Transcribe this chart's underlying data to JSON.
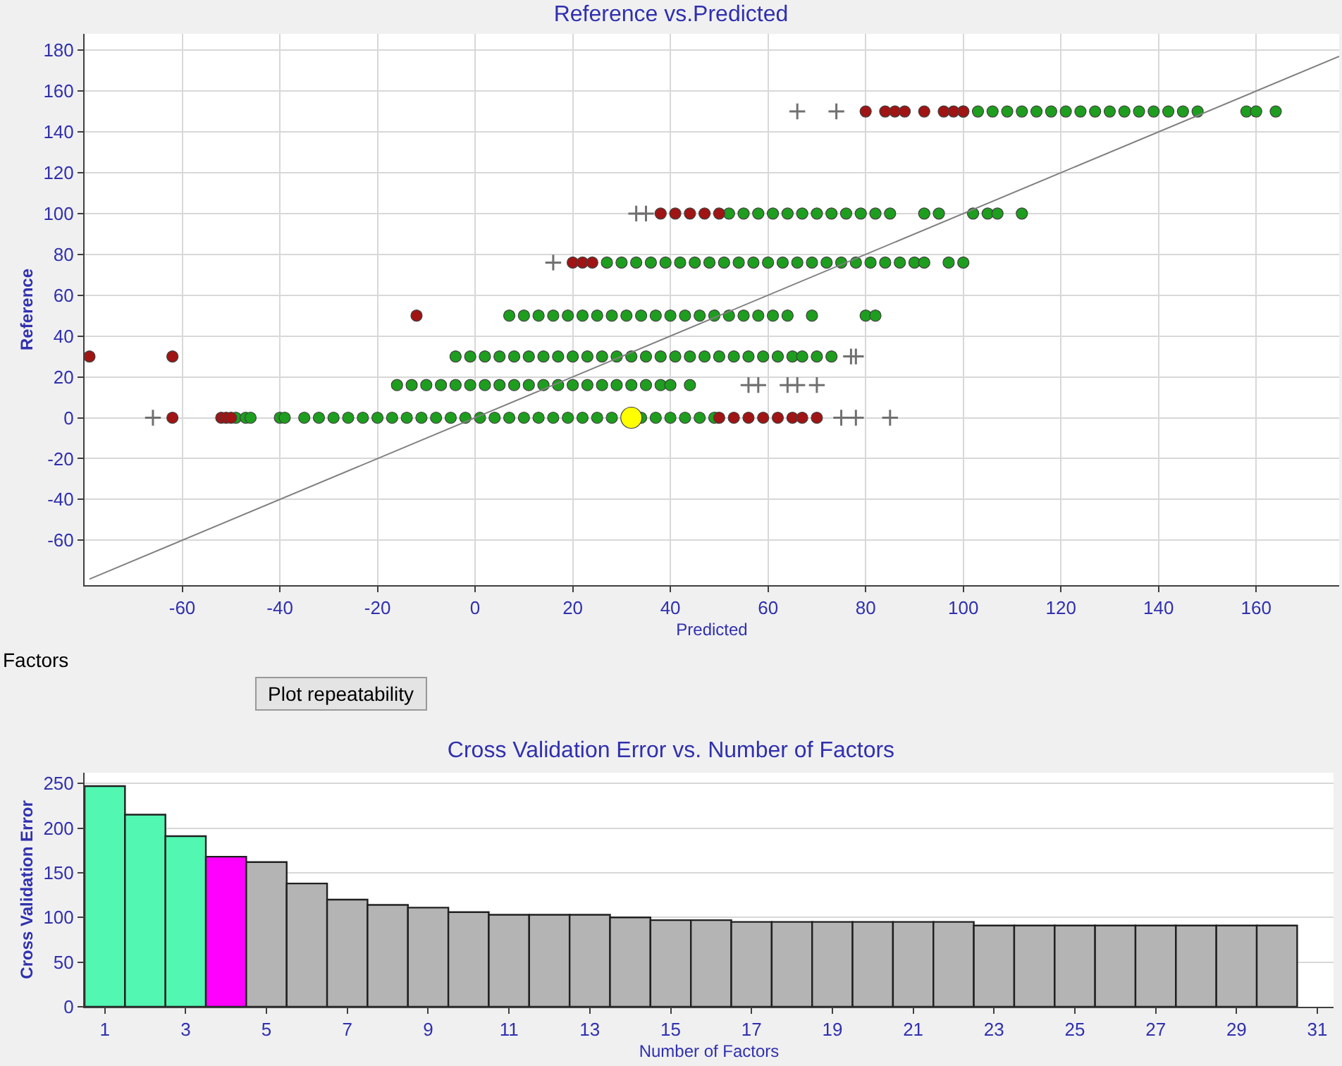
{
  "chart_data": [
    {
      "type": "scatter",
      "title": "Reference vs.Predicted",
      "xlabel": "Predicted",
      "ylabel": "Reference",
      "xlim": [
        -80,
        177
      ],
      "ylim": [
        -82,
        188
      ],
      "xticks": [
        -60,
        -40,
        -20,
        0,
        20,
        40,
        60,
        80,
        100,
        120,
        140,
        160
      ],
      "yticks": [
        -60,
        -40,
        -20,
        0,
        20,
        40,
        60,
        80,
        100,
        120,
        140,
        160,
        180
      ],
      "grid": true,
      "series": [
        {
          "type": "scatter",
          "marker": "circle",
          "color": "#1e9e1e",
          "x": [
            -49,
            -47,
            -46,
            -40,
            -39,
            -35,
            -32,
            -29,
            -26,
            -23,
            -20,
            -17,
            -14,
            -11,
            -8,
            -5,
            -2,
            1,
            4,
            7,
            10,
            13,
            16,
            19,
            22,
            25,
            28,
            34,
            37,
            40,
            43,
            46,
            49,
            -16,
            -13,
            -10,
            -7,
            -4,
            -1,
            2,
            5,
            8,
            11,
            14,
            17,
            20,
            23,
            26,
            29,
            32,
            35,
            38,
            40,
            44,
            -4,
            -1,
            2,
            5,
            8,
            11,
            14,
            17,
            20,
            23,
            26,
            29,
            32,
            35,
            38,
            41,
            44,
            47,
            50,
            53,
            56,
            59,
            62,
            65,
            67,
            70,
            73,
            7,
            10,
            13,
            16,
            19,
            22,
            25,
            28,
            31,
            34,
            37,
            40,
            43,
            46,
            49,
            52,
            55,
            58,
            61,
            64,
            69,
            80,
            82,
            27,
            30,
            33,
            36,
            39,
            42,
            45,
            48,
            51,
            54,
            57,
            60,
            63,
            66,
            69,
            72,
            75,
            78,
            81,
            84,
            87,
            90,
            92,
            97,
            100,
            52,
            55,
            58,
            61,
            64,
            67,
            70,
            73,
            76,
            79,
            82,
            85,
            92,
            95,
            102,
            105,
            107,
            112,
            100,
            103,
            106,
            109,
            112,
            115,
            118,
            121,
            124,
            127,
            130,
            133,
            136,
            139,
            142,
            145,
            148,
            158,
            160,
            164
          ],
          "values": [
            0,
            0,
            0,
            0,
            0,
            0,
            0,
            0,
            0,
            0,
            0,
            0,
            0,
            0,
            0,
            0,
            0,
            0,
            0,
            0,
            0,
            0,
            0,
            0,
            0,
            0,
            0,
            0,
            0,
            0,
            0,
            0,
            0,
            16,
            16,
            16,
            16,
            16,
            16,
            16,
            16,
            16,
            16,
            16,
            16,
            16,
            16,
            16,
            16,
            16,
            16,
            16,
            16,
            16,
            30,
            30,
            30,
            30,
            30,
            30,
            30,
            30,
            30,
            30,
            30,
            30,
            30,
            30,
            30,
            30,
            30,
            30,
            30,
            30,
            30,
            30,
            30,
            30,
            30,
            30,
            30,
            50,
            50,
            50,
            50,
            50,
            50,
            50,
            50,
            50,
            50,
            50,
            50,
            50,
            50,
            50,
            50,
            50,
            50,
            50,
            50,
            50,
            50,
            50,
            76,
            76,
            76,
            76,
            76,
            76,
            76,
            76,
            76,
            76,
            76,
            76,
            76,
            76,
            76,
            76,
            76,
            76,
            76,
            76,
            76,
            76,
            76,
            76,
            76,
            100,
            100,
            100,
            100,
            100,
            100,
            100,
            100,
            100,
            100,
            100,
            100,
            100,
            100,
            100,
            100,
            100,
            100,
            150,
            150,
            150,
            150,
            150,
            150,
            150,
            150,
            150,
            150,
            150,
            150,
            150,
            150,
            150,
            150,
            150,
            150,
            150,
            150
          ]
        },
        {
          "type": "scatter",
          "marker": "circle",
          "color": "#a01414",
          "x": [
            -62,
            -52,
            -51,
            -50,
            50,
            53,
            56,
            59,
            62,
            65,
            67,
            70,
            -79,
            -62,
            -12,
            20,
            22,
            24,
            38,
            41,
            44,
            47,
            50,
            80,
            84,
            86,
            88,
            92,
            96,
            98,
            100
          ],
          "values": [
            0,
            0,
            0,
            0,
            0,
            0,
            0,
            0,
            0,
            0,
            0,
            0,
            30,
            30,
            50,
            76,
            76,
            76,
            100,
            100,
            100,
            100,
            100,
            150,
            150,
            150,
            150,
            150,
            150,
            150,
            150
          ]
        },
        {
          "type": "scatter",
          "marker": "cross",
          "color": "#707070",
          "x": [
            -66,
            75,
            78,
            85,
            56,
            58,
            64,
            66,
            70,
            77,
            78,
            16,
            33,
            35,
            66,
            74
          ],
          "values": [
            0,
            0,
            0,
            0,
            16,
            16,
            16,
            16,
            16,
            30,
            30,
            76,
            100,
            100,
            150,
            150
          ]
        },
        {
          "type": "scatter",
          "marker": "circle",
          "color": "#ffff00",
          "x": [
            32
          ],
          "values": [
            0
          ]
        },
        {
          "type": "line",
          "color": "#808080",
          "x": [
            -79,
            177
          ],
          "values": [
            -79,
            177
          ]
        }
      ]
    },
    {
      "type": "bar",
      "title": "Cross Validation Error vs. Number of Factors",
      "xlabel": "Number of Factors",
      "ylabel": "Cross Validation Error",
      "annotations": [
        "Factors",
        "Plot repeatability"
      ],
      "x": [
        1,
        2,
        3,
        4,
        5,
        6,
        7,
        8,
        9,
        10,
        11,
        12,
        13,
        14,
        15,
        16,
        17,
        18,
        19,
        20,
        21,
        22,
        23,
        24,
        25,
        26,
        27,
        28,
        29,
        30
      ],
      "values": [
        247,
        215,
        191,
        168,
        162,
        138,
        120,
        114,
        111,
        106,
        103,
        103,
        103,
        100,
        97,
        97,
        95,
        95,
        95,
        95,
        95,
        95,
        91,
        91,
        91,
        91,
        91,
        91,
        91,
        91
      ],
      "colors": [
        "#52f7b2",
        "#52f7b2",
        "#52f7b2",
        "#ff00ff",
        "#b4b4b4",
        "#b4b4b4",
        "#b4b4b4",
        "#b4b4b4",
        "#b4b4b4",
        "#b4b4b4",
        "#b4b4b4",
        "#b4b4b4",
        "#b4b4b4",
        "#b4b4b4",
        "#b4b4b4",
        "#b4b4b4",
        "#b4b4b4",
        "#b4b4b4",
        "#b4b4b4",
        "#b4b4b4",
        "#b4b4b4",
        "#b4b4b4",
        "#b4b4b4",
        "#b4b4b4",
        "#b4b4b4",
        "#b4b4b4",
        "#b4b4b4",
        "#b4b4b4",
        "#b4b4b4",
        "#b4b4b4"
      ],
      "xlim": [
        0.5,
        31.4
      ],
      "ylim": [
        0,
        262
      ],
      "xticks": [
        1,
        3,
        5,
        7,
        9,
        11,
        13,
        15,
        17,
        19,
        21,
        23,
        25,
        27,
        29,
        31
      ],
      "yticks": [
        0,
        50,
        100,
        150,
        200,
        250
      ],
      "grid": "y"
    }
  ]
}
